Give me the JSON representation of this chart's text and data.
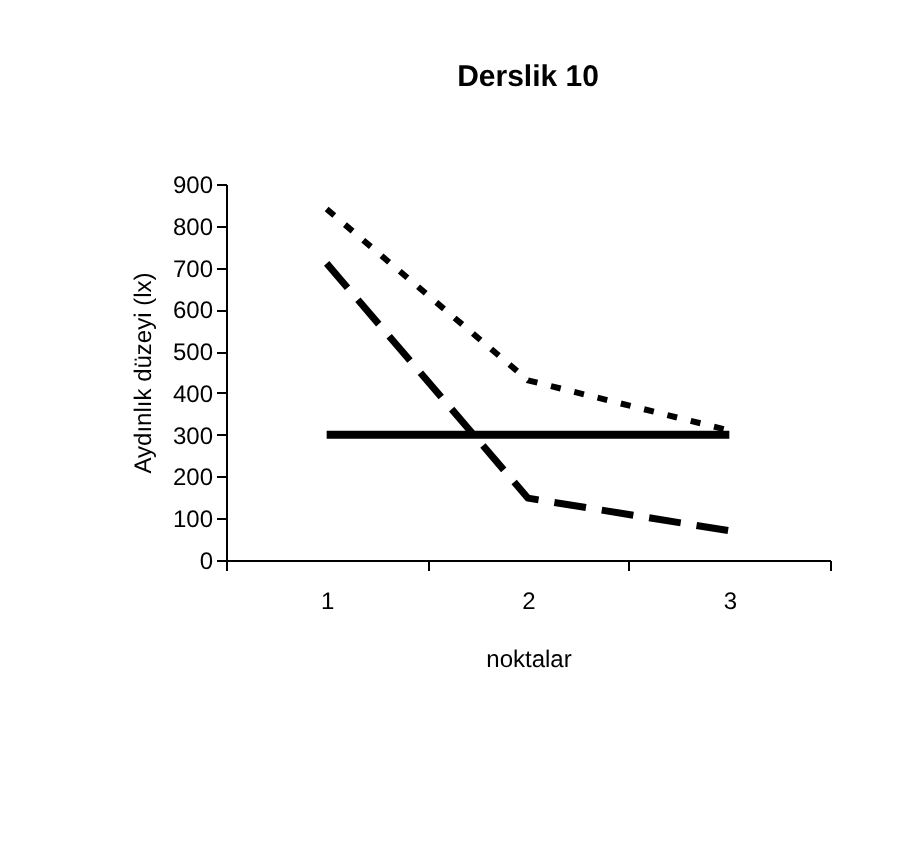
{
  "chart_data": {
    "type": "line",
    "title": "Derslik 10",
    "xlabel": "noktalar",
    "ylabel": "Aydınlık düzeyi (lx)",
    "categories": [
      "1",
      "2",
      "3"
    ],
    "series": [
      {
        "color": "#000000",
        "line_style": "solid",
        "values": [
          300,
          300,
          300
        ]
      },
      {
        "color": "#000000",
        "line_style": "dashed",
        "values": [
          710,
          148,
          70
        ]
      },
      {
        "color": "#000000",
        "line_style": "dotted",
        "values": [
          840,
          430,
          310
        ]
      }
    ],
    "ylim": [
      0,
      900
    ],
    "yticks": [
      0,
      100,
      200,
      300,
      400,
      500,
      600,
      700,
      800,
      900
    ],
    "grid": false,
    "legend": false,
    "marker": "none"
  }
}
